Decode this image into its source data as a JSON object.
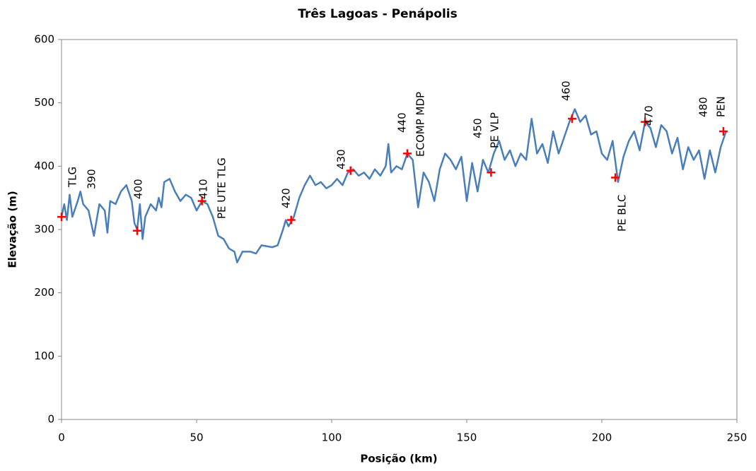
{
  "chart_data": {
    "type": "line",
    "title": "Três Lagoas - Penápolis",
    "x_label": "Posição (km)",
    "y_label": "Elevação (m)",
    "xlim": [
      0,
      250
    ],
    "ylim": [
      0,
      600
    ],
    "xticks": [
      0,
      50,
      100,
      150,
      200,
      250
    ],
    "yticks": [
      0,
      100,
      200,
      300,
      400,
      500,
      600
    ],
    "x": [
      0,
      1,
      2,
      3,
      4,
      6,
      7,
      8,
      10,
      12,
      14,
      16,
      17,
      18,
      20,
      22,
      24,
      26,
      27,
      28,
      29,
      30,
      31,
      33,
      35,
      36,
      37,
      38,
      40,
      42,
      44,
      46,
      48,
      50,
      52,
      54,
      56,
      58,
      60,
      62,
      64,
      65,
      67,
      70,
      72,
      74,
      78,
      80,
      82,
      83,
      84,
      86,
      88,
      90,
      92,
      94,
      96,
      98,
      100,
      102,
      104,
      106,
      108,
      110,
      112,
      114,
      116,
      118,
      120,
      121,
      122,
      124,
      126,
      128,
      130,
      132,
      134,
      136,
      138,
      140,
      142,
      144,
      146,
      148,
      150,
      152,
      154,
      156,
      158,
      160,
      162,
      164,
      166,
      168,
      170,
      172,
      174,
      176,
      178,
      180,
      182,
      184,
      186,
      188,
      190,
      192,
      194,
      196,
      198,
      200,
      202,
      204,
      206,
      208,
      210,
      212,
      214,
      216,
      218,
      220,
      222,
      224,
      226,
      228,
      230,
      232,
      234,
      236,
      238,
      240,
      242,
      244,
      246
    ],
    "series": [
      {
        "color": "#4a7ebb",
        "values": [
          320,
          340,
          315,
          355,
          320,
          345,
          360,
          340,
          330,
          290,
          340,
          330,
          295,
          345,
          340,
          360,
          370,
          345,
          310,
          300,
          340,
          285,
          320,
          340,
          330,
          350,
          335,
          375,
          380,
          360,
          345,
          355,
          350,
          330,
          345,
          340,
          320,
          290,
          285,
          270,
          265,
          248,
          265,
          265,
          262,
          275,
          272,
          275,
          300,
          315,
          305,
          320,
          350,
          370,
          385,
          370,
          375,
          365,
          370,
          380,
          370,
          390,
          395,
          385,
          390,
          380,
          395,
          385,
          400,
          435,
          390,
          400,
          395,
          420,
          410,
          335,
          390,
          375,
          345,
          395,
          420,
          410,
          395,
          415,
          345,
          405,
          360,
          410,
          390,
          420,
          440,
          410,
          425,
          400,
          420,
          410,
          475,
          420,
          435,
          405,
          455,
          420,
          445,
          470,
          490,
          470,
          480,
          450,
          455,
          420,
          410,
          440,
          375,
          415,
          440,
          455,
          425,
          470,
          460,
          430,
          465,
          455,
          420,
          445,
          395,
          430,
          410,
          425,
          380,
          425,
          390,
          430,
          455
        ]
      }
    ],
    "markers": {
      "color": "#ff0000",
      "x": [
        0,
        28,
        52,
        85,
        107,
        128,
        159,
        189,
        205,
        216,
        245
      ],
      "values": [
        320,
        298,
        345,
        315,
        393,
        420,
        390,
        475,
        382,
        470,
        455
      ]
    },
    "annotations": [
      "TLG",
      "390",
      "400",
      "410",
      "PE UTE TLG",
      "420",
      "430",
      "440",
      "ECOMP MDP",
      "450",
      "PE VLP",
      "460",
      "PE BLC",
      "470",
      "480",
      "PEN"
    ]
  }
}
